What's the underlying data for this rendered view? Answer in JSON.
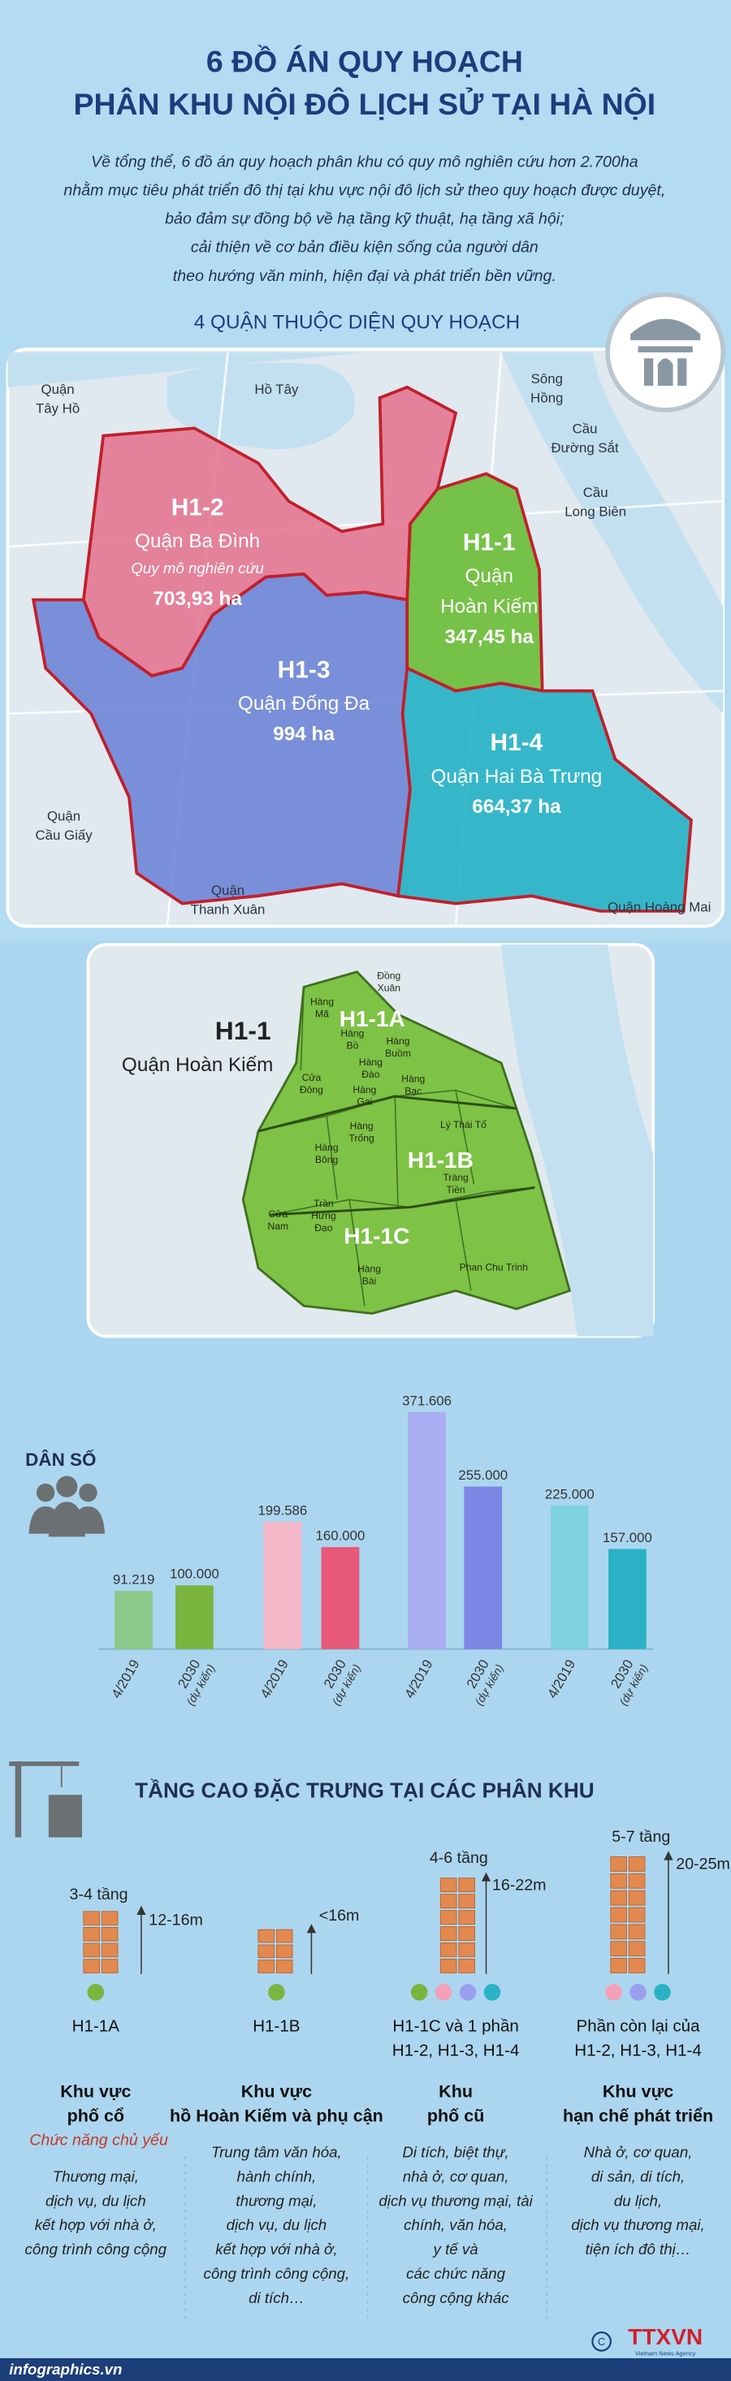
{
  "header": {
    "title_lines": [
      "6 ĐỒ ÁN QUY HOẠCH",
      "PHÂN KHU NỘI ĐÔ LỊCH SỬ TẠI HÀ NỘI"
    ],
    "intro_lines": [
      "Về tổng thể, 6 đồ án quy hoạch phân khu có quy mô nghiên cứu hơn 2.700ha",
      "nhằm mục tiêu phát triển đô thị tại khu vực nội đô lịch sử theo quy hoạch được duyệt,",
      "bảo đảm sự đồng bộ về hạ tầng kỹ thuật, hạ tầng xã hội;",
      "cải thiện về cơ bản điều kiện sống của người dân",
      "theo hướng văn minh, hiện đại và phát triển bền vững."
    ]
  },
  "map_section": {
    "title": "4 QUẬN THUỘC DIỆN QUY HOẠCH",
    "place_labels": [
      [
        "Quận",
        "Tây Hồ"
      ],
      [
        "Hồ Tây"
      ],
      [
        "Sông",
        "Hồng"
      ],
      [
        "Cầu",
        "Đường Sắt"
      ],
      [
        "Cầu",
        "Long Biên"
      ],
      [
        "Quận",
        "Cầu Giấy"
      ],
      [
        "Quận",
        "Thanh Xuân"
      ],
      [
        "Quận Hoàng Mai"
      ]
    ],
    "zones": [
      {
        "code": "H1-2",
        "district": [
          "Quận Ba Đình"
        ],
        "note": "Quy mô nghiên cứu",
        "area": "703,93 ha"
      },
      {
        "code": "H1-1",
        "district": [
          "Quận",
          "Hoàn Kiếm"
        ],
        "area": "347,45 ha"
      },
      {
        "code": "H1-3",
        "district": [
          "Quận Đống Đa"
        ],
        "area": "994 ha"
      },
      {
        "code": "H1-4",
        "district": [
          "Quận Hai Bà Trưng"
        ],
        "area": "664,37 ha"
      }
    ]
  },
  "detail_map": {
    "code": "H1-1",
    "district": "Quận Hoàn Kiếm",
    "subzones": [
      "H1-1A",
      "H1-1B",
      "H1-1C"
    ],
    "wards": [
      [
        "Đồng",
        "Xuân"
      ],
      [
        "Hàng",
        "Mã"
      ],
      [
        "Hàng",
        "Bồ"
      ],
      [
        "Hàng",
        "Buồm"
      ],
      [
        "Hàng",
        "Đào"
      ],
      [
        "Hàng",
        "Bạc"
      ],
      [
        "Cửa",
        "Đông"
      ],
      [
        "Hàng",
        "Gai"
      ],
      [
        "Hàng",
        "Trống"
      ],
      [
        "Lý Thái Tổ"
      ],
      [
        "Tràng",
        "Tiền"
      ],
      [
        "Hàng",
        "Bông"
      ],
      [
        "Cửa",
        "Nam"
      ],
      [
        "Trần",
        "Hưng",
        "Đạo"
      ],
      [
        "Hàng",
        "Bài"
      ],
      [
        "Phan Chu Trinh"
      ]
    ]
  },
  "chart_data": {
    "type": "bar",
    "title": "DÂN SỐ",
    "categories": [
      "4/2019",
      "2030",
      "4/2019",
      "2030",
      "4/2019",
      "2030",
      "4/2019",
      "2030"
    ],
    "category_notes": [
      null,
      "(dự kiến)",
      null,
      "(dự kiến)",
      null,
      "(dự kiến)",
      null,
      "(dự kiến)"
    ],
    "values": [
      91219,
      100000,
      199586,
      160000,
      371606,
      255000,
      225000,
      157000
    ],
    "value_labels": [
      "91.219",
      "100.000",
      "199.586",
      "160.000",
      "371.606",
      "255.000",
      "225.000",
      "157.000"
    ],
    "colors": [
      "#8cc98a",
      "#7ab540",
      "#f3b7c8",
      "#e8587a",
      "#a9aef2",
      "#7d86e4",
      "#7fd2df",
      "#2bb2c7"
    ]
  },
  "heights": {
    "title": "TẦNG CAO ĐẶC TRƯNG TẠI CÁC PHÂN KHU",
    "function_heading": "Chức năng chủ yếu",
    "columns": [
      {
        "floors": "3-4 tầng",
        "height": "12-16m",
        "dots": [
          "#7ab540"
        ],
        "zone": [
          "H1-1A"
        ],
        "area": [
          "Khu vực",
          "phố cổ"
        ],
        "functions": [
          "Thương mại,",
          "dịch vụ, du lịch",
          "kết hợp với nhà ở,",
          "công trình công cộng"
        ]
      },
      {
        "floors": null,
        "height": "<16m",
        "dots": [
          "#7ab540"
        ],
        "zone": [
          "H1-1B"
        ],
        "area": [
          "Khu vực",
          "hồ Hoàn Kiếm và phụ cận"
        ],
        "functions": [
          "Trung tâm văn hóa,",
          "hành chính,",
          "thương mại,",
          "dịch vụ, du lịch",
          "kết hợp với nhà ở,",
          "công trình công cộng,",
          "di tích…"
        ]
      },
      {
        "floors": "4-6 tầng",
        "height": "16-22m",
        "dots": [
          "#7ab540",
          "#f3a0b8",
          "#9a9ff0",
          "#2bb2c7"
        ],
        "zone": [
          "H1-1C và 1 phần",
          "H1-2, H1-3, H1-4"
        ],
        "area": [
          "Khu",
          "phố cũ"
        ],
        "functions": [
          "Di tích, biệt thự,",
          "nhà ở, cơ quan,",
          "dịch vụ thương mại, tài",
          "chính, văn hóa,",
          "y tế và",
          "các chức năng",
          "công cộng khác"
        ]
      },
      {
        "floors": "5-7 tầng",
        "height": "20-25m",
        "dots": [
          "#f3a0b8",
          "#9a9ff0",
          "#2bb2c7"
        ],
        "zone": [
          "Phần còn lại của",
          "H1-2, H1-3, H1-4"
        ],
        "area": [
          "Khu vực",
          "hạn chế phát triển"
        ],
        "functions": [
          "Nhà ở, cơ quan,",
          "di sản, di tích,",
          "du lịch,",
          "dịch vụ thương mại,",
          "tiện ích đô thị…"
        ]
      }
    ]
  },
  "footer": {
    "site": "infographics.vn",
    "agency": "TTXVN",
    "agency_sub": "Vietnam News Agency"
  }
}
